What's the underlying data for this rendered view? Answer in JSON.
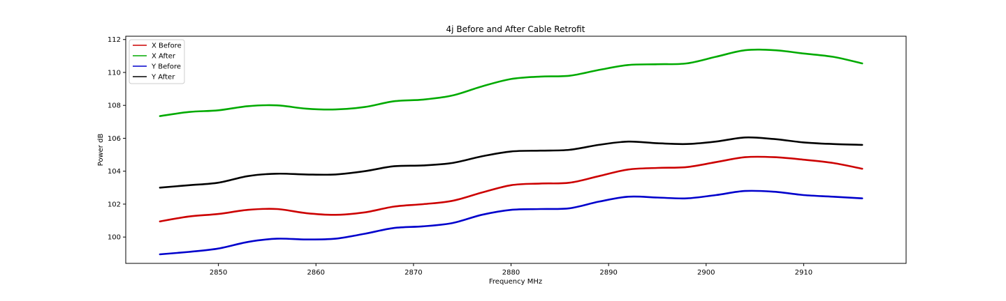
{
  "chart_data": {
    "type": "line",
    "title": "4j Before and After Cable Retrofit",
    "xlabel": "Frequency MHz",
    "ylabel": "Power dB",
    "xlim": [
      2840.5,
      2920.5
    ],
    "ylim": [
      98.4,
      112.2
    ],
    "xticks": [
      2850,
      2860,
      2870,
      2880,
      2890,
      2900,
      2910
    ],
    "yticks": [
      100,
      102,
      104,
      106,
      108,
      110,
      112
    ],
    "grid": false,
    "legend_position": "upper-left",
    "x": [
      2844,
      2847,
      2850,
      2853,
      2856,
      2859,
      2862,
      2865,
      2868,
      2871,
      2874,
      2877,
      2880,
      2883,
      2886,
      2889,
      2892,
      2895,
      2898,
      2901,
      2904,
      2907,
      2910,
      2913,
      2916
    ],
    "series": [
      {
        "name": "X Before",
        "color": "#cc0000",
        "values": [
          100.95,
          101.25,
          101.4,
          101.65,
          101.7,
          101.45,
          101.35,
          101.5,
          101.85,
          102.0,
          102.2,
          102.7,
          103.15,
          103.25,
          103.3,
          103.7,
          104.1,
          104.2,
          104.25,
          104.55,
          104.85,
          104.85,
          104.7,
          104.5,
          104.15
        ]
      },
      {
        "name": "X After",
        "color": "#00aa00",
        "values": [
          107.35,
          107.6,
          107.7,
          107.95,
          108.0,
          107.8,
          107.75,
          107.9,
          108.25,
          108.35,
          108.6,
          109.15,
          109.6,
          109.75,
          109.8,
          110.15,
          110.45,
          110.5,
          110.55,
          110.95,
          111.35,
          111.35,
          111.15,
          110.95,
          110.55
        ]
      },
      {
        "name": "Y Before",
        "color": "#0000cc",
        "values": [
          98.95,
          99.1,
          99.3,
          99.7,
          99.9,
          99.85,
          99.9,
          100.2,
          100.55,
          100.65,
          100.85,
          101.35,
          101.65,
          101.7,
          101.75,
          102.15,
          102.45,
          102.4,
          102.35,
          102.55,
          102.8,
          102.75,
          102.55,
          102.45,
          102.35
        ]
      },
      {
        "name": "Y After",
        "color": "#000000",
        "values": [
          103.0,
          103.15,
          103.3,
          103.7,
          103.85,
          103.8,
          103.8,
          104.0,
          104.3,
          104.35,
          104.5,
          104.9,
          105.2,
          105.25,
          105.3,
          105.6,
          105.8,
          105.7,
          105.65,
          105.8,
          106.05,
          105.95,
          105.75,
          105.65,
          105.6
        ]
      }
    ]
  }
}
